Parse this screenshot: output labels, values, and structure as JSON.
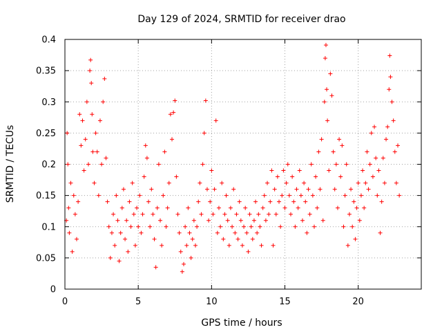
{
  "chart_data": {
    "type": "scatter",
    "title": "Day 129 of 2024, SRMTID for receiver drao",
    "xlabel": "GPS time / hours",
    "ylabel": "SRMTID / TECUs",
    "xlim": [
      0,
      24.3
    ],
    "ylim": [
      0,
      0.4
    ],
    "x_ticks": [
      0,
      5,
      10,
      15,
      20
    ],
    "x_tick_labels": [
      "0",
      "5",
      "10",
      "15",
      "20"
    ],
    "y_ticks": [
      0,
      0.05,
      0.1,
      0.15,
      0.2,
      0.25,
      0.3,
      0.35,
      0.4
    ],
    "y_tick_labels": [
      "0",
      "0.05",
      "0.1",
      "0.15",
      "0.2",
      "0.25",
      "0.3",
      "0.35",
      "0.4"
    ],
    "grid": true,
    "marker": "+",
    "color": "#ff0000",
    "series": [
      {
        "name": "SRMTID",
        "points": [
          [
            0.1,
            0.11
          ],
          [
            0.15,
            0.25
          ],
          [
            0.2,
            0.2
          ],
          [
            0.25,
            0.13
          ],
          [
            0.3,
            0.09
          ],
          [
            0.4,
            0.17
          ],
          [
            0.5,
            0.06
          ],
          [
            0.6,
            0.15
          ],
          [
            0.7,
            0.12
          ],
          [
            0.8,
            0.08
          ],
          [
            0.9,
            0.14
          ],
          [
            1.0,
            0.28
          ],
          [
            1.1,
            0.23
          ],
          [
            1.2,
            0.27
          ],
          [
            1.3,
            0.19
          ],
          [
            1.4,
            0.24
          ],
          [
            1.5,
            0.3
          ],
          [
            1.6,
            0.2
          ],
          [
            1.7,
            0.35
          ],
          [
            1.75,
            0.367
          ],
          [
            1.8,
            0.33
          ],
          [
            1.85,
            0.28
          ],
          [
            1.9,
            0.22
          ],
          [
            2.0,
            0.17
          ],
          [
            2.1,
            0.25
          ],
          [
            2.2,
            0.22
          ],
          [
            2.3,
            0.15
          ],
          [
            2.4,
            0.27
          ],
          [
            2.5,
            0.2
          ],
          [
            2.6,
            0.3
          ],
          [
            2.7,
            0.337
          ],
          [
            2.8,
            0.21
          ],
          [
            2.9,
            0.14
          ],
          [
            3.0,
            0.1
          ],
          [
            3.1,
            0.05
          ],
          [
            3.2,
            0.09
          ],
          [
            3.3,
            0.12
          ],
          [
            3.4,
            0.07
          ],
          [
            3.5,
            0.15
          ],
          [
            3.6,
            0.11
          ],
          [
            3.7,
            0.045
          ],
          [
            3.8,
            0.09
          ],
          [
            3.9,
            0.13
          ],
          [
            4.0,
            0.16
          ],
          [
            4.1,
            0.08
          ],
          [
            4.2,
            0.11
          ],
          [
            4.3,
            0.06
          ],
          [
            4.4,
            0.14
          ],
          [
            4.5,
            0.1
          ],
          [
            4.6,
            0.17
          ],
          [
            4.7,
            0.12
          ],
          [
            4.8,
            0.07
          ],
          [
            4.9,
            0.13
          ],
          [
            5.0,
            0.1
          ],
          [
            5.1,
            0.15
          ],
          [
            5.2,
            0.09
          ],
          [
            5.3,
            0.12
          ],
          [
            5.4,
            0.18
          ],
          [
            5.5,
            0.23
          ],
          [
            5.6,
            0.21
          ],
          [
            5.7,
            0.14
          ],
          [
            5.8,
            0.1
          ],
          [
            5.9,
            0.16
          ],
          [
            6.0,
            0.12
          ],
          [
            6.1,
            0.08
          ],
          [
            6.2,
            0.035
          ],
          [
            6.3,
            0.13
          ],
          [
            6.4,
            0.2
          ],
          [
            6.5,
            0.11
          ],
          [
            6.6,
            0.07
          ],
          [
            6.7,
            0.15
          ],
          [
            6.8,
            0.22
          ],
          [
            6.9,
            0.1
          ],
          [
            7.0,
            0.13
          ],
          [
            7.1,
            0.17
          ],
          [
            7.2,
            0.28
          ],
          [
            7.3,
            0.24
          ],
          [
            7.4,
            0.283
          ],
          [
            7.5,
            0.302
          ],
          [
            7.6,
            0.18
          ],
          [
            7.7,
            0.12
          ],
          [
            7.8,
            0.09
          ],
          [
            7.9,
            0.06
          ],
          [
            8.0,
            0.028
          ],
          [
            8.1,
            0.04
          ],
          [
            8.2,
            0.1
          ],
          [
            8.3,
            0.07
          ],
          [
            8.4,
            0.13
          ],
          [
            8.5,
            0.09
          ],
          [
            8.6,
            0.05
          ],
          [
            8.7,
            0.08
          ],
          [
            8.8,
            0.11
          ],
          [
            8.9,
            0.07
          ],
          [
            9.0,
            0.1
          ],
          [
            9.1,
            0.14
          ],
          [
            9.2,
            0.17
          ],
          [
            9.3,
            0.12
          ],
          [
            9.4,
            0.2
          ],
          [
            9.5,
            0.25
          ],
          [
            9.6,
            0.302
          ],
          [
            9.7,
            0.16
          ],
          [
            9.8,
            0.11
          ],
          [
            9.9,
            0.14
          ],
          [
            10.0,
            0.19
          ],
          [
            10.1,
            0.12
          ],
          [
            10.2,
            0.16
          ],
          [
            10.3,
            0.27
          ],
          [
            10.4,
            0.09
          ],
          [
            10.5,
            0.13
          ],
          [
            10.6,
            0.1
          ],
          [
            10.7,
            0.17
          ],
          [
            10.8,
            0.08
          ],
          [
            10.9,
            0.12
          ],
          [
            11.0,
            0.15
          ],
          [
            11.1,
            0.11
          ],
          [
            11.2,
            0.07
          ],
          [
            11.3,
            0.13
          ],
          [
            11.4,
            0.1
          ],
          [
            11.5,
            0.16
          ],
          [
            11.6,
            0.09
          ],
          [
            11.7,
            0.12
          ],
          [
            11.8,
            0.08
          ],
          [
            11.9,
            0.14
          ],
          [
            12.0,
            0.11
          ],
          [
            12.1,
            0.07
          ],
          [
            12.2,
            0.1
          ],
          [
            12.3,
            0.13
          ],
          [
            12.4,
            0.09
          ],
          [
            12.5,
            0.06
          ],
          [
            12.6,
            0.12
          ],
          [
            12.7,
            0.1
          ],
          [
            12.8,
            0.08
          ],
          [
            12.9,
            0.11
          ],
          [
            13.0,
            0.14
          ],
          [
            13.1,
            0.09
          ],
          [
            13.2,
            0.12
          ],
          [
            13.3,
            0.1
          ],
          [
            13.4,
            0.07
          ],
          [
            13.5,
            0.13
          ],
          [
            13.6,
            0.15
          ],
          [
            13.7,
            0.11
          ],
          [
            13.8,
            0.17
          ],
          [
            13.9,
            0.12
          ],
          [
            14.0,
            0.14
          ],
          [
            14.1,
            0.19
          ],
          [
            14.2,
            0.07
          ],
          [
            14.3,
            0.16
          ],
          [
            14.4,
            0.12
          ],
          [
            14.5,
            0.18
          ],
          [
            14.6,
            0.14
          ],
          [
            14.7,
            0.1
          ],
          [
            14.8,
            0.15
          ],
          [
            14.9,
            0.19
          ],
          [
            15.0,
            0.13
          ],
          [
            15.1,
            0.17
          ],
          [
            15.2,
            0.2
          ],
          [
            15.3,
            0.15
          ],
          [
            15.4,
            0.12
          ],
          [
            15.5,
            0.18
          ],
          [
            15.6,
            0.14
          ],
          [
            15.7,
            0.1
          ],
          [
            15.8,
            0.16
          ],
          [
            15.9,
            0.13
          ],
          [
            16.0,
            0.19
          ],
          [
            16.1,
            0.15
          ],
          [
            16.2,
            0.11
          ],
          [
            16.3,
            0.17
          ],
          [
            16.4,
            0.14
          ],
          [
            16.5,
            0.09
          ],
          [
            16.6,
            0.16
          ],
          [
            16.7,
            0.12
          ],
          [
            16.8,
            0.2
          ],
          [
            16.9,
            0.15
          ],
          [
            17.0,
            0.1
          ],
          [
            17.1,
            0.18
          ],
          [
            17.2,
            0.13
          ],
          [
            17.3,
            0.22
          ],
          [
            17.4,
            0.16
          ],
          [
            17.5,
            0.24
          ],
          [
            17.6,
            0.11
          ],
          [
            17.7,
            0.3
          ],
          [
            17.75,
            0.37
          ],
          [
            17.8,
            0.391
          ],
          [
            17.85,
            0.32
          ],
          [
            17.9,
            0.27
          ],
          [
            18.0,
            0.19
          ],
          [
            18.1,
            0.345
          ],
          [
            18.2,
            0.31
          ],
          [
            18.3,
            0.22
          ],
          [
            18.4,
            0.16
          ],
          [
            18.5,
            0.2
          ],
          [
            18.6,
            0.13
          ],
          [
            18.7,
            0.24
          ],
          [
            18.8,
            0.18
          ],
          [
            18.9,
            0.23
          ],
          [
            19.0,
            0.1
          ],
          [
            19.1,
            0.15
          ],
          [
            19.2,
            0.2
          ],
          [
            19.3,
            0.07
          ],
          [
            19.4,
            0.12
          ],
          [
            19.5,
            0.16
          ],
          [
            19.6,
            0.1
          ],
          [
            19.7,
            0.14
          ],
          [
            19.8,
            0.08
          ],
          [
            19.9,
            0.13
          ],
          [
            20.0,
            0.17
          ],
          [
            20.1,
            0.11
          ],
          [
            20.2,
            0.15
          ],
          [
            20.3,
            0.19
          ],
          [
            20.4,
            0.13
          ],
          [
            20.5,
            0.17
          ],
          [
            20.6,
            0.22
          ],
          [
            20.7,
            0.16
          ],
          [
            20.8,
            0.2
          ],
          [
            20.9,
            0.25
          ],
          [
            21.0,
            0.18
          ],
          [
            21.1,
            0.26
          ],
          [
            21.2,
            0.21
          ],
          [
            21.3,
            0.15
          ],
          [
            21.4,
            0.19
          ],
          [
            21.5,
            0.09
          ],
          [
            21.6,
            0.14
          ],
          [
            21.7,
            0.21
          ],
          [
            21.8,
            0.17
          ],
          [
            21.9,
            0.24
          ],
          [
            22.0,
            0.26
          ],
          [
            22.1,
            0.32
          ],
          [
            22.15,
            0.374
          ],
          [
            22.2,
            0.34
          ],
          [
            22.3,
            0.3
          ],
          [
            22.4,
            0.27
          ],
          [
            22.5,
            0.22
          ],
          [
            22.6,
            0.17
          ],
          [
            22.7,
            0.23
          ],
          [
            22.8,
            0.15
          ]
        ]
      }
    ]
  }
}
